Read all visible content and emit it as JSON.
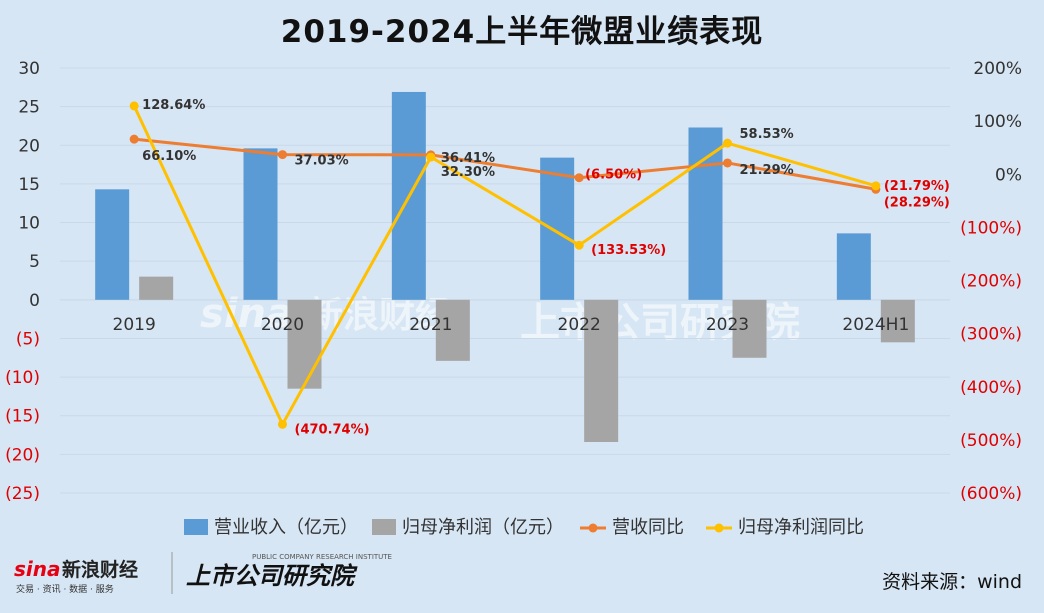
{
  "title": "2019-2024上半年微盟业绩表现",
  "source": "资料来源：wind",
  "watermarks": {
    "sina_logo": "sina",
    "sina_name": "新浪财经",
    "sina_sub": "交易 · 资讯 · 数据 · 服务",
    "institute_name": "上市公司研究院",
    "institute_en": "PUBLIC COMPANY RESEARCH INSTITUTE"
  },
  "colors": {
    "background": "#d7e6f4",
    "revenue_bar": "#5b9bd5",
    "profit_bar": "#a5a5a5",
    "revenue_yoy_line": "#ed7d31",
    "profit_yoy_line": "#ffc000",
    "negative_label": "#e00000"
  },
  "chart_data": {
    "type": "bar",
    "categories": [
      "2019",
      "2020",
      "2021",
      "2022",
      "2023",
      "2024H1"
    ],
    "series": [
      {
        "name": "营业收入（亿元）",
        "type": "bar",
        "axis": "left",
        "values": [
          14.3,
          19.6,
          26.9,
          18.4,
          22.3,
          8.6
        ]
      },
      {
        "name": "归母净利润（亿元）",
        "type": "bar",
        "axis": "left",
        "values": [
          3.0,
          -11.5,
          -7.9,
          -18.4,
          -7.5,
          -5.5
        ]
      },
      {
        "name": "营收同比",
        "type": "line",
        "axis": "right",
        "values": [
          66.1,
          37.03,
          36.41,
          -6.5,
          21.29,
          -28.29
        ],
        "labels": [
          "66.10%",
          "37.03%",
          "36.41%",
          "(6.50%)",
          "21.29%",
          "(28.29%)"
        ]
      },
      {
        "name": "归母净利润同比",
        "type": "line",
        "axis": "right",
        "values": [
          128.64,
          -470.74,
          32.3,
          -133.53,
          58.53,
          -21.79
        ],
        "labels": [
          "128.64%",
          "(470.74%)",
          "32.30%",
          "(133.53%)",
          "58.53%",
          "(21.79%)"
        ]
      }
    ],
    "left_axis": {
      "range": [
        -25,
        30
      ],
      "ticks": [
        30,
        25,
        20,
        15,
        10,
        5,
        0,
        -5,
        -10,
        -15,
        -20,
        -25
      ],
      "tick_labels": [
        "30",
        "25",
        "20",
        "15",
        "10",
        "5",
        "0",
        "(5)",
        "(10)",
        "(15)",
        "(20)",
        "(25)"
      ]
    },
    "right_axis": {
      "range": [
        -600,
        200
      ],
      "ticks": [
        200,
        100,
        0,
        -100,
        -200,
        -300,
        -400,
        -500,
        -600
      ],
      "tick_labels": [
        "200%",
        "100%",
        "0%",
        "(100%)",
        "(200%)",
        "(300%)",
        "(400%)",
        "(500%)",
        "(600%)"
      ]
    },
    "grid": true,
    "legend_position": "bottom"
  }
}
